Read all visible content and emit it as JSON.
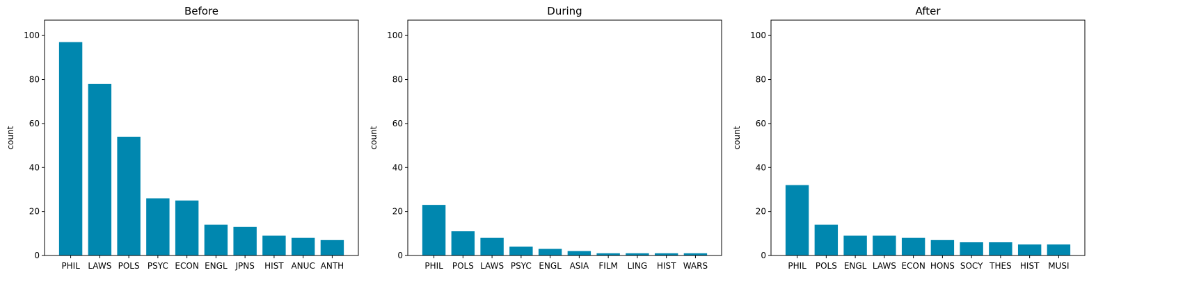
{
  "chart_data": [
    {
      "type": "bar",
      "title": "Before",
      "ylabel": "count",
      "xlabel": "",
      "ylim": [
        0,
        107
      ],
      "yticks": [
        0,
        20,
        40,
        60,
        80,
        100
      ],
      "ytick_labels": [
        "0",
        "20",
        "40",
        "60",
        "80",
        "100"
      ],
      "categories": [
        "PHIL",
        "LAWS",
        "POLS",
        "PSYC",
        "ECON",
        "ENGL",
        "JPNS",
        "HIST",
        "ANUC",
        "ANTH"
      ],
      "values": [
        97,
        78,
        54,
        26,
        25,
        14,
        13,
        9,
        8,
        7
      ],
      "color": "#0087af",
      "grid": false
    },
    {
      "type": "bar",
      "title": "During",
      "ylabel": "count",
      "xlabel": "",
      "ylim": [
        0,
        107
      ],
      "yticks": [
        0,
        20,
        40,
        60,
        80,
        100
      ],
      "ytick_labels": [
        "0",
        "20",
        "40",
        "60",
        "80",
        "100"
      ],
      "categories": [
        "PHIL",
        "POLS",
        "LAWS",
        "PSYC",
        "ENGL",
        "ASIA",
        "FILM",
        "LING",
        "HIST",
        "WARS"
      ],
      "values": [
        23,
        11,
        8,
        4,
        3,
        2,
        1,
        1,
        1,
        1
      ],
      "color": "#0087af",
      "grid": false
    },
    {
      "type": "bar",
      "title": "After",
      "ylabel": "count",
      "xlabel": "",
      "ylim": [
        0,
        107
      ],
      "yticks": [
        0,
        20,
        40,
        60,
        80,
        100
      ],
      "ytick_labels": [
        "0",
        "20",
        "40",
        "60",
        "80",
        "100"
      ],
      "categories": [
        "PHIL",
        "POLS",
        "ENGL",
        "LAWS",
        "ECON",
        "HONS",
        "SOCY",
        "THES",
        "HIST",
        "MUSI"
      ],
      "values": [
        32,
        14,
        9,
        9,
        8,
        7,
        6,
        6,
        5,
        5
      ],
      "color": "#0087af",
      "grid": false
    }
  ]
}
